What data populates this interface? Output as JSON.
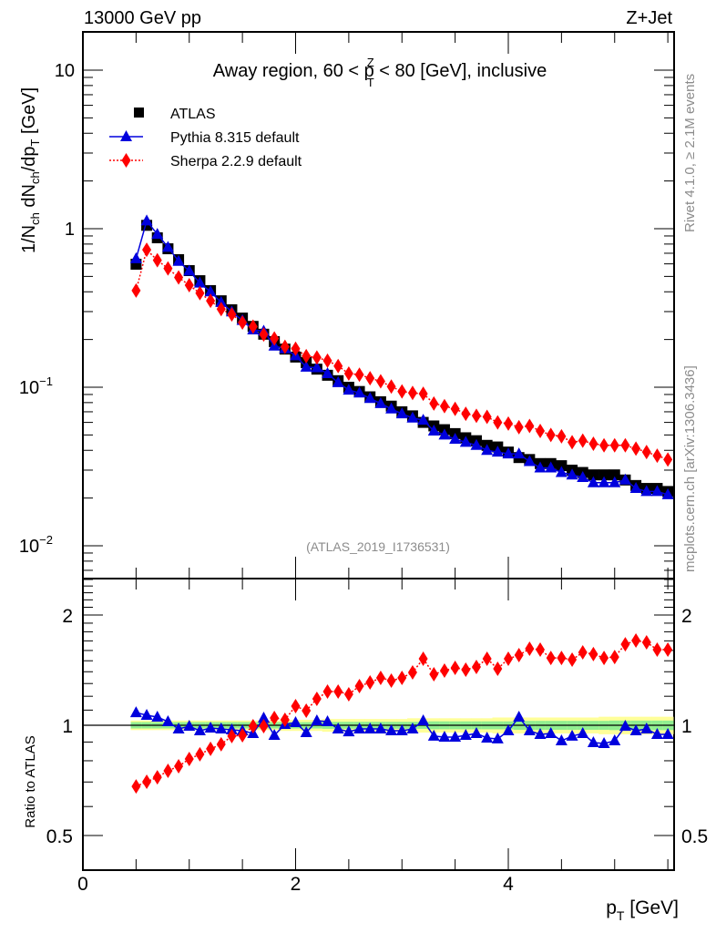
{
  "header": {
    "left": "13000 GeV pp",
    "right": "Z+Jet"
  },
  "side_labels": {
    "rivet": "Rivet 4.1.0, ≥ 2.1M events",
    "mcplots": "mcplots.cern.ch [arXiv:1306.3436]"
  },
  "colors": {
    "atlas": "#000000",
    "pythia": "#0000dd",
    "sherpa": "#ff0000",
    "band_inner": "#90ee90",
    "band_outer": "#ffff99"
  },
  "chart_data": [
    {
      "type": "scatter",
      "panel": "main",
      "title": "Away region, 60 < p_T^Z < 80 [GeV], inclusive",
      "title_parts": {
        "pre": "Away region, 60 < p",
        "sup": "Z",
        "sub": "T",
        "post": " < 80 [GeV], inclusive"
      },
      "watermark": "(ATLAS_2019_I1736531)",
      "ylabel": "1/N_ch dN_ch/dp_T [GeV]",
      "ylabel_parts": {
        "a": "1/N",
        "a_sub": "ch",
        "b": " dN",
        "b_sub": "ch",
        "c": "/dp",
        "c_sub": "T",
        "d": " [GeV]"
      },
      "yscale": "log",
      "ylim": [
        0.0065,
        17
      ],
      "xlim": [
        0,
        5.6
      ],
      "ytick_labels": [
        {
          "value": 10,
          "base": "10",
          "exp": ""
        },
        {
          "value": 1,
          "base": "1",
          "exp": ""
        },
        {
          "value": 0.1,
          "base": "10",
          "exp": "−1"
        },
        {
          "value": 0.01,
          "base": "10",
          "exp": "−2"
        }
      ],
      "legend": {
        "position": "top-left",
        "entries": [
          {
            "name": "ATLAS",
            "marker": "square"
          },
          {
            "name": "Pythia 8.315 default",
            "marker": "triangle",
            "line": "solid"
          },
          {
            "name": "Sherpa 2.2.9 default",
            "marker": "diamond",
            "line": "dotted"
          }
        ]
      },
      "x": [
        0.5,
        0.6,
        0.7,
        0.8,
        0.9,
        1.0,
        1.1,
        1.2,
        1.3,
        1.4,
        1.5,
        1.6,
        1.7,
        1.8,
        1.9,
        2.0,
        2.1,
        2.2,
        2.3,
        2.4,
        2.5,
        2.6,
        2.7,
        2.8,
        2.9,
        3.0,
        3.1,
        3.2,
        3.3,
        3.4,
        3.5,
        3.6,
        3.7,
        3.8,
        3.9,
        4.0,
        4.1,
        4.2,
        4.3,
        4.4,
        4.5,
        4.6,
        4.7,
        4.8,
        4.9,
        5.0,
        5.1,
        5.2,
        5.3,
        5.4,
        5.5
      ],
      "series": [
        {
          "name": "ATLAS",
          "values": [
            0.597,
            1.05,
            0.876,
            0.747,
            0.638,
            0.544,
            0.47,
            0.407,
            0.351,
            0.308,
            0.273,
            0.242,
            0.216,
            0.194,
            0.174,
            0.155,
            0.143,
            0.13,
            0.119,
            0.11,
            0.1,
            0.094,
            0.087,
            0.081,
            0.076,
            0.07,
            0.066,
            0.06,
            0.057,
            0.054,
            0.051,
            0.048,
            0.046,
            0.043,
            0.042,
            0.039,
            0.036,
            0.035,
            0.033,
            0.033,
            0.032,
            0.03,
            0.029,
            0.028,
            0.028,
            0.028,
            0.026,
            0.024,
            0.023,
            0.023,
            0.022
          ]
        },
        {
          "name": "Pythia 8.315 default",
          "values": [
            0.647,
            1.12,
            0.922,
            0.764,
            0.623,
            0.541,
            0.454,
            0.4,
            0.343,
            0.299,
            0.264,
            0.23,
            0.226,
            0.182,
            0.175,
            0.158,
            0.134,
            0.133,
            0.122,
            0.107,
            0.096,
            0.092,
            0.085,
            0.079,
            0.073,
            0.068,
            0.064,
            0.062,
            0.053,
            0.05,
            0.047,
            0.045,
            0.043,
            0.04,
            0.039,
            0.038,
            0.038,
            0.034,
            0.031,
            0.031,
            0.029,
            0.028,
            0.027,
            0.025,
            0.025,
            0.025,
            0.026,
            0.023,
            0.022,
            0.022,
            0.021
          ]
        },
        {
          "name": "Sherpa 2.2.9 default",
          "values": [
            0.407,
            0.736,
            0.632,
            0.561,
            0.493,
            0.44,
            0.392,
            0.351,
            0.311,
            0.288,
            0.256,
            0.241,
            0.215,
            0.203,
            0.18,
            0.175,
            0.157,
            0.154,
            0.147,
            0.136,
            0.122,
            0.12,
            0.114,
            0.109,
            0.101,
            0.094,
            0.092,
            0.091,
            0.079,
            0.076,
            0.073,
            0.068,
            0.066,
            0.065,
            0.06,
            0.059,
            0.056,
            0.057,
            0.053,
            0.05,
            0.049,
            0.045,
            0.046,
            0.044,
            0.043,
            0.043,
            0.043,
            0.041,
            0.039,
            0.037,
            0.035
          ]
        }
      ]
    },
    {
      "type": "scatter",
      "panel": "ratio",
      "ylabel": "Ratio to ATLAS",
      "xlabel": "p_T [GeV]",
      "xlabel_parts": {
        "a": "p",
        "sub": "T",
        "b": " [GeV]"
      },
      "yscale": "log",
      "ylim": [
        0.37,
        2.7
      ],
      "xlim": [
        0,
        5.6
      ],
      "ytick_labels": [
        "2",
        "1",
        "0.5"
      ],
      "ytick_values": [
        2,
        1,
        0.5
      ],
      "xtick_labels": [
        "0",
        "2",
        "4"
      ],
      "xtick_values": [
        0,
        2,
        4
      ],
      "reference_line": 1,
      "x": [
        0.5,
        0.6,
        0.7,
        0.8,
        0.9,
        1.0,
        1.1,
        1.2,
        1.3,
        1.4,
        1.5,
        1.6,
        1.7,
        1.8,
        1.9,
        2.0,
        2.1,
        2.2,
        2.3,
        2.4,
        2.5,
        2.6,
        2.7,
        2.8,
        2.9,
        3.0,
        3.1,
        3.2,
        3.3,
        3.4,
        3.5,
        3.6,
        3.7,
        3.8,
        3.9,
        4.0,
        4.1,
        4.2,
        4.3,
        4.4,
        4.5,
        4.6,
        4.7,
        4.8,
        4.9,
        5.0,
        5.1,
        5.2,
        5.3,
        5.4,
        5.5
      ],
      "band": {
        "inner_halfwidth": [
          0.02,
          0.02,
          0.02,
          0.02,
          0.02,
          0.02,
          0.02,
          0.02,
          0.02,
          0.02,
          0.02,
          0.02,
          0.02,
          0.02,
          0.02,
          0.02,
          0.02,
          0.02,
          0.022,
          0.022,
          0.022,
          0.022,
          0.022,
          0.022,
          0.022,
          0.022,
          0.022,
          0.022,
          0.025,
          0.025,
          0.025,
          0.025,
          0.025,
          0.025,
          0.025,
          0.025,
          0.028,
          0.028,
          0.028,
          0.028,
          0.028,
          0.028,
          0.028,
          0.028,
          0.028,
          0.03,
          0.03,
          0.03,
          0.03,
          0.03,
          0.03
        ],
        "outer_halfwidth": [
          0.03,
          0.03,
          0.03,
          0.03,
          0.03,
          0.03,
          0.03,
          0.03,
          0.03,
          0.03,
          0.03,
          0.03,
          0.03,
          0.03,
          0.035,
          0.035,
          0.035,
          0.035,
          0.04,
          0.04,
          0.04,
          0.04,
          0.04,
          0.04,
          0.04,
          0.04,
          0.045,
          0.045,
          0.045,
          0.045,
          0.045,
          0.045,
          0.045,
          0.045,
          0.05,
          0.05,
          0.05,
          0.05,
          0.05,
          0.05,
          0.05,
          0.05,
          0.05,
          0.05,
          0.055,
          0.055,
          0.055,
          0.055,
          0.055,
          0.055,
          0.055
        ]
      },
      "series": [
        {
          "name": "Pythia 8.315 default",
          "values": [
            1.083,
            1.065,
            1.053,
            1.023,
            0.977,
            0.994,
            0.966,
            0.983,
            0.977,
            0.972,
            0.966,
            0.95,
            1.047,
            0.939,
            1.006,
            1.017,
            0.955,
            1.029,
            1.023,
            0.977,
            0.96,
            0.977,
            0.977,
            0.977,
            0.966,
            0.966,
            0.977,
            1.029,
            0.934,
            0.928,
            0.928,
            0.939,
            0.95,
            0.923,
            0.918,
            0.966,
            1.053,
            0.966,
            0.944,
            0.95,
            0.907,
            0.934,
            0.95,
            0.897,
            0.892,
            0.907,
            0.994,
            0.966,
            0.977,
            0.944,
            0.944
          ]
        },
        {
          "name": "Sherpa 2.2.9 default",
          "values": [
            0.681,
            0.701,
            0.721,
            0.751,
            0.773,
            0.809,
            0.833,
            0.862,
            0.887,
            0.934,
            0.939,
            0.994,
            0.994,
            1.047,
            1.035,
            1.128,
            1.096,
            1.181,
            1.236,
            1.236,
            1.215,
            1.279,
            1.309,
            1.347,
            1.324,
            1.347,
            1.394,
            1.519,
            1.378,
            1.41,
            1.435,
            1.418,
            1.443,
            1.519,
            1.426,
            1.519,
            1.554,
            1.618,
            1.609,
            1.527,
            1.527,
            1.51,
            1.581,
            1.564,
            1.527,
            1.536,
            1.664,
            1.703,
            1.684,
            1.609,
            1.609
          ]
        }
      ]
    }
  ]
}
